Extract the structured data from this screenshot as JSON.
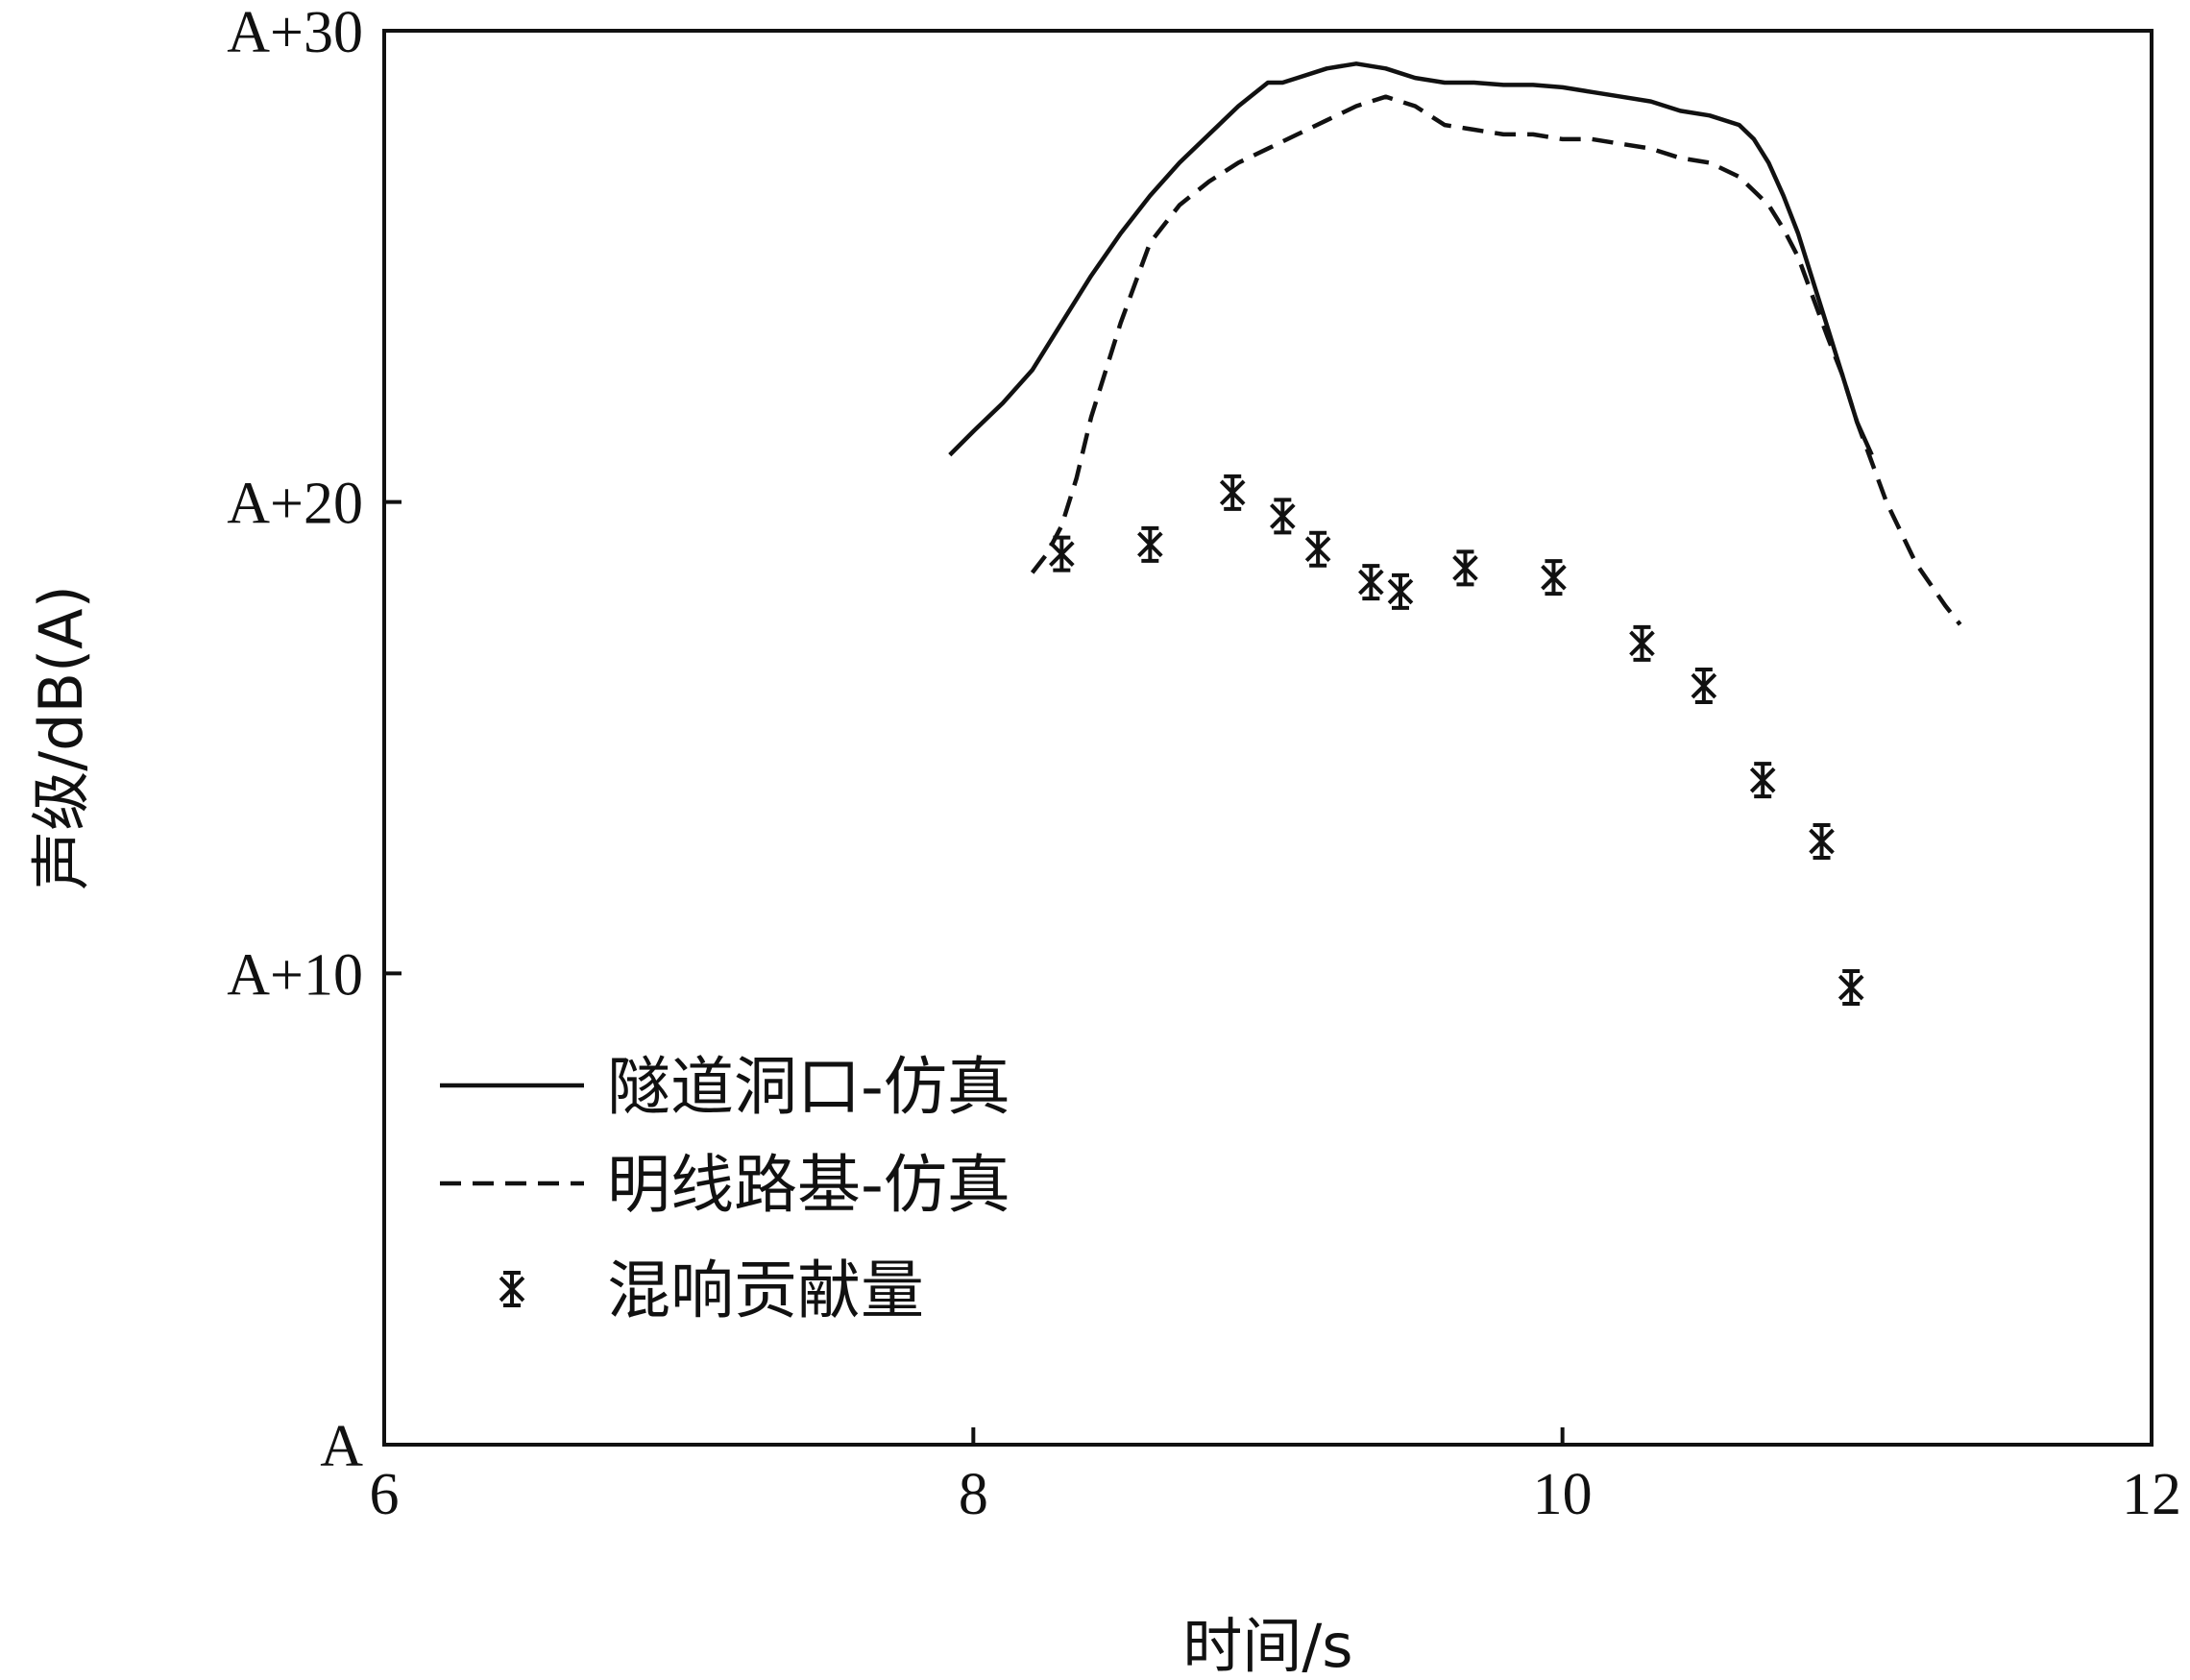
{
  "chart_data": {
    "type": "line",
    "title": "",
    "xlabel": "时间/s",
    "ylabel": "声级/dB(A)",
    "xlim": [
      6,
      12
    ],
    "ylim": [
      0,
      30
    ],
    "x_ticks": [
      {
        "value": 6,
        "label": "6"
      },
      {
        "value": 8,
        "label": "8"
      },
      {
        "value": 10,
        "label": "10"
      },
      {
        "value": 12,
        "label": "12"
      }
    ],
    "y_ticks": [
      {
        "value": 0,
        "label": "A"
      },
      {
        "value": 10,
        "label": "A+10"
      },
      {
        "value": 20,
        "label": "A+20"
      },
      {
        "value": 30,
        "label": "A+30"
      }
    ],
    "grid": false,
    "legend_position": "bottom-left",
    "series": [
      {
        "name": "隧道洞口-仿真",
        "style": "solid",
        "color": "#111111",
        "x": [
          7.92,
          8.0,
          8.1,
          8.2,
          8.3,
          8.4,
          8.5,
          8.6,
          8.7,
          8.8,
          8.9,
          9.0,
          9.05,
          9.1,
          9.2,
          9.3,
          9.4,
          9.5,
          9.6,
          9.7,
          9.8,
          9.9,
          10.0,
          10.1,
          10.2,
          10.3,
          10.4,
          10.5,
          10.6,
          10.65,
          10.7,
          10.75,
          10.8,
          10.85,
          10.9,
          10.95,
          11.0,
          11.05
        ],
        "y": [
          21.0,
          21.5,
          22.1,
          22.8,
          23.8,
          24.8,
          25.7,
          26.5,
          27.2,
          27.8,
          28.4,
          28.9,
          28.9,
          29.0,
          29.2,
          29.3,
          29.2,
          29.0,
          28.9,
          28.9,
          28.85,
          28.85,
          28.8,
          28.7,
          28.6,
          28.5,
          28.3,
          28.2,
          28.0,
          27.7,
          27.2,
          26.5,
          25.7,
          24.7,
          23.7,
          22.7,
          21.7,
          21.0
        ]
      },
      {
        "name": "明线路基-仿真",
        "style": "dashed",
        "color": "#111111",
        "x": [
          8.2,
          8.25,
          8.3,
          8.35,
          8.4,
          8.5,
          8.6,
          8.7,
          8.8,
          8.9,
          9.0,
          9.1,
          9.2,
          9.3,
          9.4,
          9.5,
          9.6,
          9.7,
          9.8,
          9.9,
          10.0,
          10.1,
          10.2,
          10.3,
          10.4,
          10.5,
          10.6,
          10.65,
          10.7,
          10.75,
          10.8,
          10.9,
          10.95,
          11.0,
          11.1,
          11.2,
          11.3,
          11.35
        ],
        "y": [
          18.5,
          18.9,
          19.5,
          20.5,
          21.8,
          23.8,
          25.5,
          26.3,
          26.8,
          27.2,
          27.5,
          27.8,
          28.1,
          28.4,
          28.6,
          28.4,
          28.0,
          27.9,
          27.8,
          27.8,
          27.7,
          27.7,
          27.6,
          27.5,
          27.3,
          27.2,
          26.9,
          26.6,
          26.3,
          25.8,
          25.2,
          23.5,
          22.7,
          21.7,
          20.0,
          18.7,
          17.8,
          17.4
        ]
      },
      {
        "name": "混响贡献量",
        "style": "markers",
        "marker": "asterisk",
        "color": "#111111",
        "x": [
          8.3,
          8.6,
          8.88,
          9.05,
          9.17,
          9.35,
          9.45,
          9.67,
          9.97,
          10.27,
          10.48,
          10.68,
          10.88,
          10.98
        ],
        "y": [
          18.9,
          19.1,
          20.2,
          19.7,
          19.0,
          18.3,
          18.1,
          18.6,
          18.4,
          17.0,
          16.1,
          14.1,
          12.8,
          9.7
        ]
      }
    ]
  }
}
